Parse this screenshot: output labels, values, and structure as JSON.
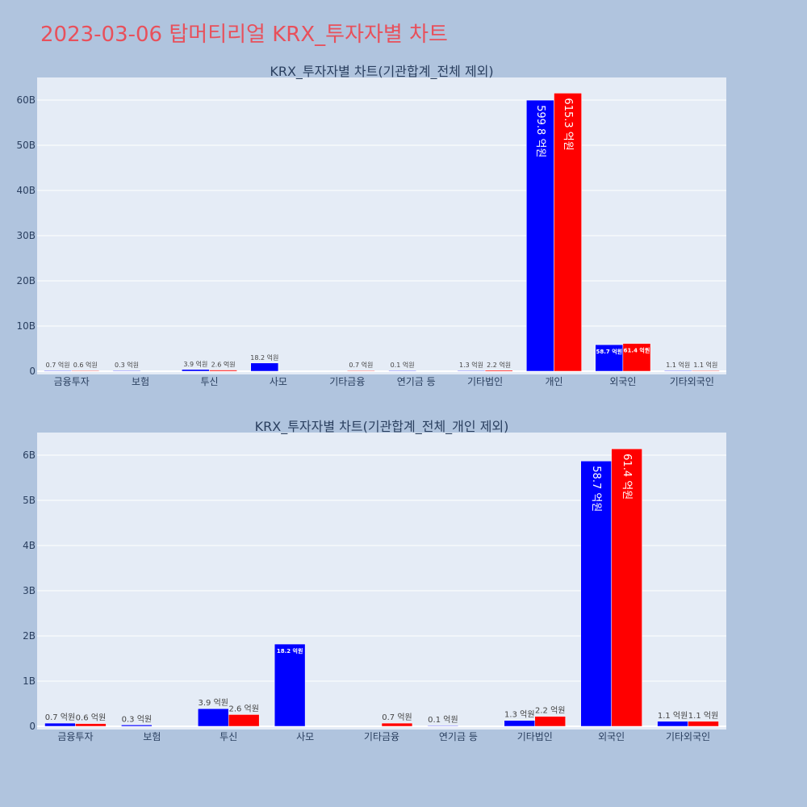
{
  "page": {
    "title": "2023-03-06 탑머티리얼 KRX_투자자별 차트"
  },
  "colors": {
    "buy": "#0000ff",
    "sell": "#ff0000",
    "plot_bg": "#e5ecf6",
    "page_bg": "#b0c4de",
    "axis_text": "#2a3f5f"
  },
  "chart_data": [
    {
      "type": "bar",
      "title": "KRX_투자자별 차트(기관합계_전체 제외)",
      "categories": [
        "금융투자",
        "보험",
        "투신",
        "사모",
        "기타금융",
        "연기금 등",
        "기타법인",
        "개인",
        "외국인",
        "기타외국인"
      ],
      "series": [
        {
          "values": [
            70000000,
            30000000,
            390000000,
            1820000000,
            null,
            10000000,
            130000000,
            59980000000,
            5870000000,
            110000000
          ],
          "labels": [
            "0.7 억원",
            "0.3 억원",
            "3.9 억원",
            "18.2 억원",
            "",
            "0.1 억원",
            "1.3 억원",
            "599.8 억원",
            "58.7 억원",
            "1.1 억원"
          ]
        },
        {
          "values": [
            60000000,
            null,
            260000000,
            null,
            70000000,
            null,
            220000000,
            61530000000,
            6140000000,
            110000000
          ],
          "labels": [
            "0.6 억원",
            "",
            "2.6 억원",
            "",
            "0.7 억원",
            "",
            "2.2 억원",
            "615.3 억원",
            "61.4 억원",
            "1.1 억원"
          ]
        }
      ],
      "ylim": [
        0,
        65000000000
      ],
      "y_ticks": [
        0,
        10000000000,
        20000000000,
        30000000000,
        40000000000,
        50000000000,
        60000000000
      ],
      "y_tick_labels": [
        "0",
        "10B",
        "20B",
        "30B",
        "40B",
        "50B",
        "60B"
      ],
      "grid": true,
      "legend": "none"
    },
    {
      "type": "bar",
      "title": "KRX_투자자별 차트(기관합계_전체_개인 제외)",
      "categories": [
        "금융투자",
        "보험",
        "투신",
        "사모",
        "기타금융",
        "연기금 등",
        "기타법인",
        "외국인",
        "기타외국인"
      ],
      "series": [
        {
          "values": [
            70000000,
            30000000,
            390000000,
            1820000000,
            null,
            10000000,
            130000000,
            5870000000,
            110000000
          ],
          "labels": [
            "0.7 억원",
            "0.3 억원",
            "3.9 억원",
            "18.2 억원",
            "",
            "0.1 억원",
            "1.3 억원",
            "58.7 억원",
            "1.1 억원"
          ]
        },
        {
          "values": [
            60000000,
            null,
            260000000,
            null,
            70000000,
            null,
            220000000,
            6140000000,
            110000000
          ],
          "labels": [
            "0.6 억원",
            "",
            "2.6 억원",
            "",
            "0.7 억원",
            "",
            "2.2 억원",
            "61.4 억원",
            "1.1 억원"
          ]
        }
      ],
      "ylim": [
        0,
        6500000000
      ],
      "y_ticks": [
        0,
        1000000000,
        2000000000,
        3000000000,
        4000000000,
        5000000000,
        6000000000
      ],
      "y_tick_labels": [
        "0",
        "1B",
        "2B",
        "3B",
        "4B",
        "5B",
        "6B"
      ],
      "grid": true,
      "legend": "none"
    }
  ]
}
